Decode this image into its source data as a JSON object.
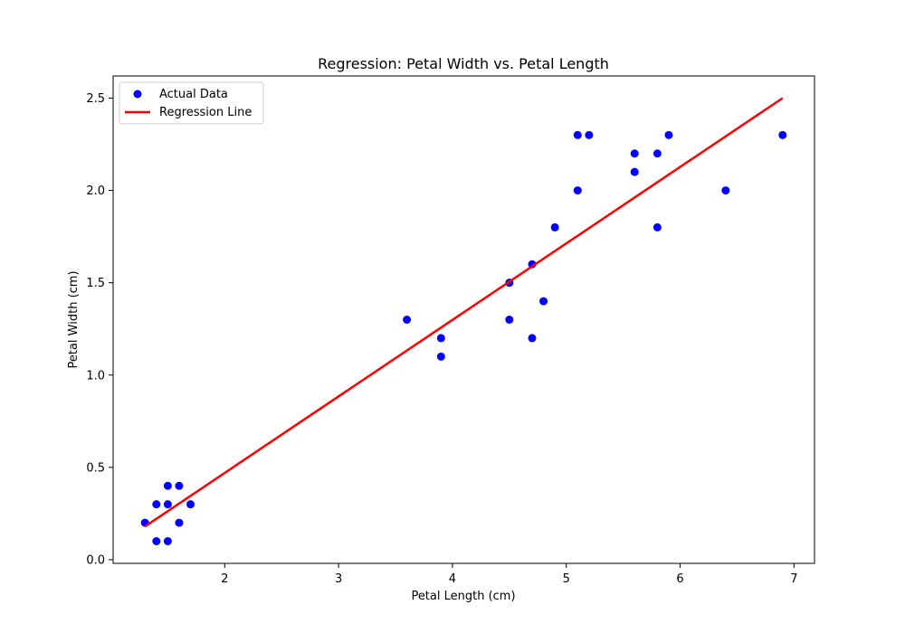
{
  "chart_data": {
    "type": "scatter",
    "title": "Regression: Petal Width vs. Petal Length",
    "xlabel": "Petal Length (cm)",
    "ylabel": "Petal Width (cm)",
    "xlim": [
      1.02,
      7.18
    ],
    "ylim": [
      -0.02,
      2.62
    ],
    "xticks": [
      2,
      3,
      4,
      5,
      6,
      7
    ],
    "xtick_labels": [
      "2",
      "3",
      "4",
      "5",
      "6",
      "7"
    ],
    "yticks": [
      0.0,
      0.5,
      1.0,
      1.5,
      2.0,
      2.5
    ],
    "ytick_labels": [
      "0.0",
      "0.5",
      "1.0",
      "1.5",
      "2.0",
      "2.5"
    ],
    "grid": false,
    "legend_position": "top-left",
    "series": [
      {
        "name": "Actual Data",
        "kind": "scatter",
        "color": "#0000ff",
        "points": [
          [
            1.3,
            0.2
          ],
          [
            1.4,
            0.3
          ],
          [
            1.4,
            0.1
          ],
          [
            1.5,
            0.4
          ],
          [
            1.5,
            0.3
          ],
          [
            1.5,
            0.1
          ],
          [
            1.6,
            0.4
          ],
          [
            1.6,
            0.2
          ],
          [
            1.7,
            0.3
          ],
          [
            3.6,
            1.3
          ],
          [
            3.9,
            1.2
          ],
          [
            3.9,
            1.1
          ],
          [
            4.5,
            1.5
          ],
          [
            4.5,
            1.3
          ],
          [
            4.7,
            1.6
          ],
          [
            4.7,
            1.2
          ],
          [
            4.8,
            1.4
          ],
          [
            4.9,
            1.8
          ],
          [
            5.1,
            2.3
          ],
          [
            5.2,
            2.3
          ],
          [
            5.1,
            2.0
          ],
          [
            5.6,
            2.2
          ],
          [
            5.6,
            2.1
          ],
          [
            5.8,
            2.2
          ],
          [
            5.8,
            1.8
          ],
          [
            5.9,
            2.3
          ],
          [
            6.4,
            2.0
          ],
          [
            6.9,
            2.3
          ]
        ]
      },
      {
        "name": "Regression Line",
        "kind": "line",
        "color": "#ff0000",
        "x": [
          1.3,
          6.9
        ],
        "y": [
          0.18,
          2.5
        ]
      }
    ]
  }
}
